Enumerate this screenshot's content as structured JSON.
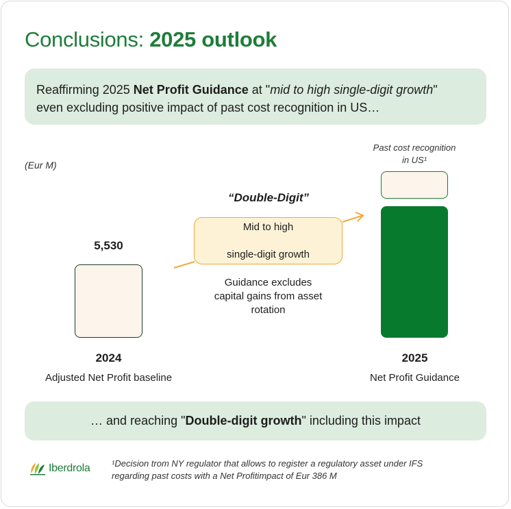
{
  "title": {
    "regular": "Conclusions: ",
    "bold": "2025 outlook"
  },
  "banner_top": {
    "part1": "Reaffirming 2025 ",
    "bold": "Net Profit Guidance",
    "part2": " at \"",
    "italic": "mid to high single-digit growth",
    "part3": "\"",
    "line2": "even excluding positive impact of past cost recognition in US…"
  },
  "unit": "(Eur M)",
  "chart": {
    "bar_2024": {
      "value": "5,530",
      "year": "2024",
      "caption": "Adjusted Net Profit baseline"
    },
    "bar_2025": {
      "year": "2025",
      "caption": "Net Profit Guidance",
      "past_label_line1": "Past cost recognition",
      "past_label_line2": "in US¹"
    },
    "double_digit": "“Double-Digit”",
    "growth_line1": "Mid to high",
    "growth_line2": "single-digit growth",
    "exclusion_line1": "Guidance excludes",
    "exclusion_line2": "capital gains from asset",
    "exclusion_line3": "rotation"
  },
  "banner_bottom": {
    "part1": "… and reaching \"",
    "bold": "Double-digit growth",
    "part2": "\" including this impact"
  },
  "logo": {
    "name": "Iberdrola"
  },
  "footnote": {
    "line1": "¹Decision trom NY regulator that allows to register a regulatory asset under IFS",
    "line2": "regarding past costs with a Net Profitimpact of Eur 386 M"
  },
  "colors": {
    "brand_green": "#1e7d3a",
    "bar_green": "#087a2e",
    "banner_bg": "#dcecdf",
    "orange": "#f2a838",
    "cream": "#fdf5ec"
  }
}
